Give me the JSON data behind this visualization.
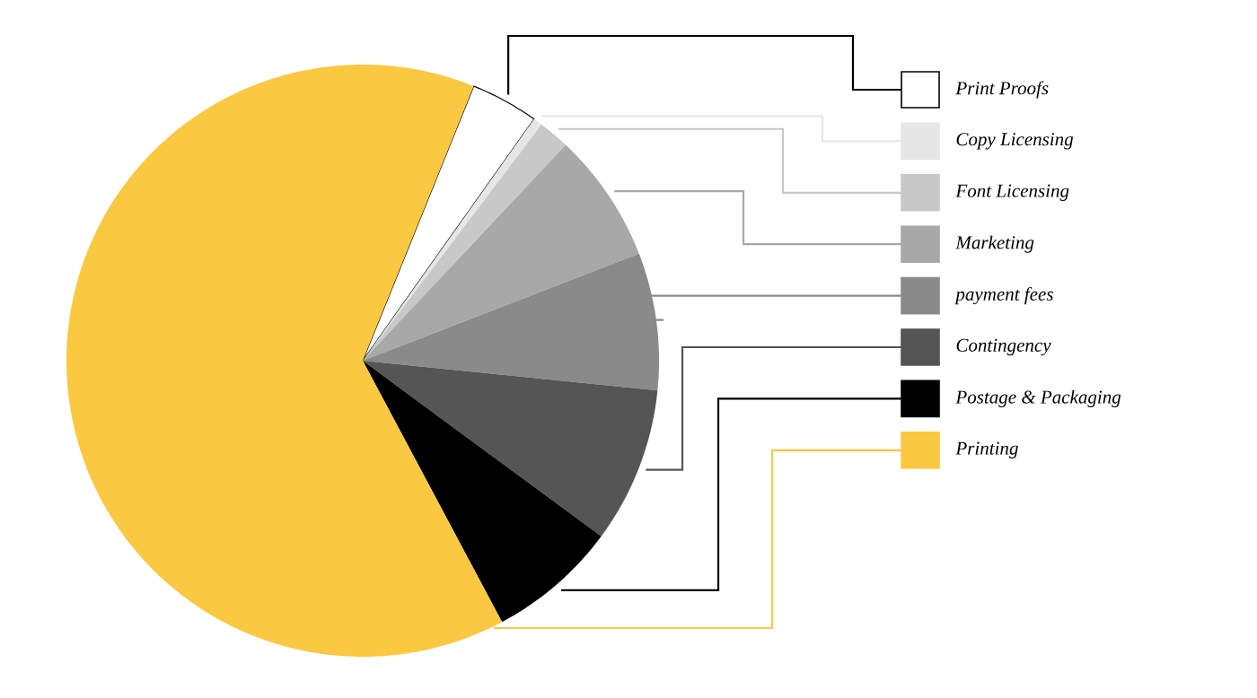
{
  "chart_data": {
    "type": "pie",
    "categories": [
      "Print Proofs",
      "Copy Licensing",
      "Font Licensing",
      "Marketing",
      "payment fees",
      "Contingency",
      "Postage & Packaging",
      "Printing"
    ],
    "values": [
      3.7,
      0.5,
      1.7,
      7.1,
      7.5,
      8.5,
      7.1,
      63.9
    ],
    "colors": [
      "#ffffff",
      "#e6e6e6",
      "#c8c8c8",
      "#a8a8a8",
      "#8a8a8a",
      "#555555",
      "#000000",
      "#fbc841"
    ],
    "legend": "right"
  }
}
